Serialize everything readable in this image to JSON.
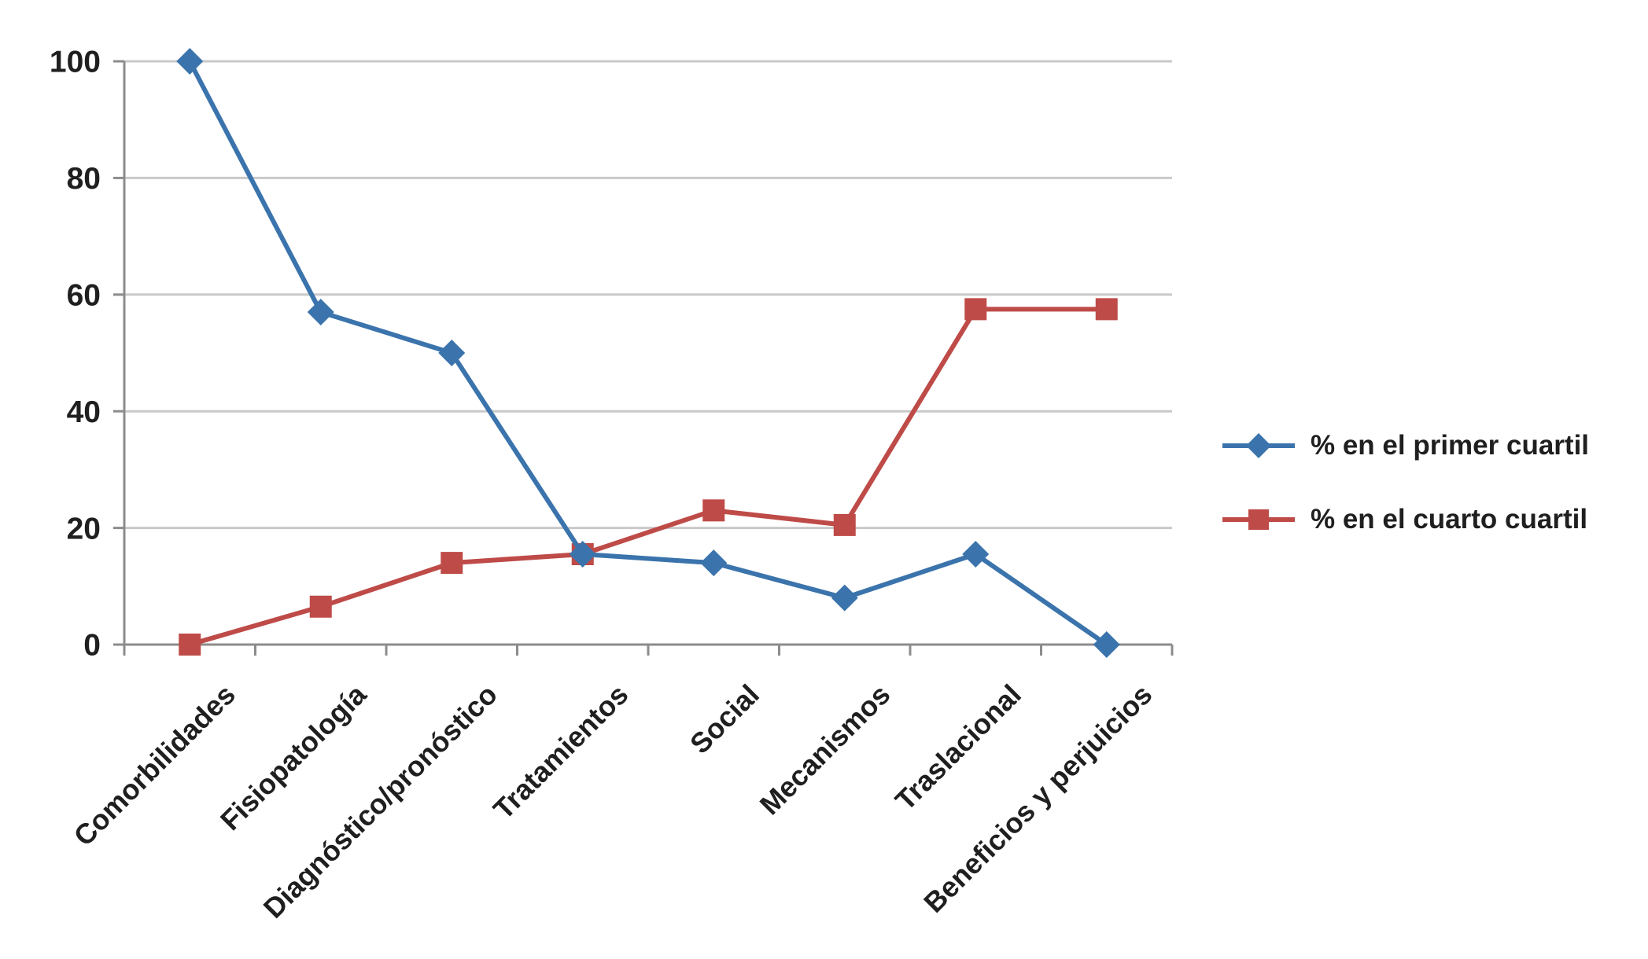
{
  "chart_data": {
    "type": "line",
    "categories": [
      "Comorbilidades",
      "Fisiopatología",
      "Diagnóstico/pronóstico",
      "Tratamientos",
      "Social",
      "Mecanismos",
      "Traslacional",
      "Beneficios y perjuicios"
    ],
    "series": [
      {
        "name": "% en el primer cuartil",
        "color": "#3B74AC",
        "marker": "diamond",
        "values": [
          100,
          57,
          50,
          15.5,
          14,
          8,
          15.5,
          0
        ]
      },
      {
        "name": "% en el cuarto cuartil",
        "color": "#BE4B48",
        "marker": "square",
        "values": [
          0,
          6.5,
          14,
          15.5,
          23,
          20.5,
          57.5,
          57.5
        ]
      }
    ],
    "title": "",
    "xlabel": "",
    "ylabel": "",
    "ylim": [
      0,
      100
    ],
    "yticks": [
      0,
      20,
      40,
      60,
      80,
      100
    ],
    "grid": true,
    "legend_position": "right",
    "colors": {
      "gridline": "#C9C9C9",
      "axis": "#8C8C8C",
      "text": "#1F1F1F",
      "background": "#FFFFFF"
    }
  }
}
